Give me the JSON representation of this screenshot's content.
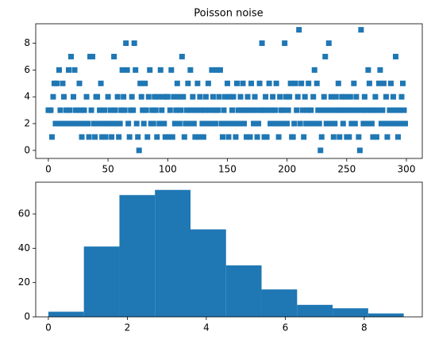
{
  "chart_data": [
    {
      "type": "scatter",
      "title": "Poisson noise",
      "color": "#1f77b4",
      "marker": "square",
      "xlim": [
        -10.6,
        313.3
      ],
      "ylim": [
        -0.6,
        9.45
      ],
      "xticks": [
        0,
        50,
        100,
        150,
        200,
        250,
        300
      ],
      "yticks": [
        0,
        2,
        4,
        6,
        8
      ],
      "x": [
        0,
        1,
        2,
        3,
        4,
        5,
        6,
        7,
        8,
        9,
        10,
        11,
        12,
        13,
        14,
        15,
        16,
        17,
        18,
        19,
        20,
        21,
        22,
        23,
        24,
        25,
        26,
        27,
        28,
        29,
        30,
        31,
        32,
        33,
        34,
        35,
        36,
        37,
        38,
        39,
        40,
        41,
        42,
        43,
        44,
        45,
        46,
        47,
        48,
        49,
        50,
        51,
        52,
        53,
        54,
        55,
        56,
        57,
        58,
        59,
        60,
        61,
        62,
        63,
        64,
        65,
        66,
        67,
        68,
        69,
        70,
        71,
        72,
        73,
        74,
        75,
        76,
        77,
        78,
        79,
        80,
        81,
        82,
        83,
        84,
        85,
        86,
        87,
        88,
        89,
        90,
        91,
        92,
        93,
        94,
        95,
        96,
        97,
        98,
        99,
        100,
        101,
        102,
        103,
        104,
        105,
        106,
        107,
        108,
        109,
        110,
        111,
        112,
        113,
        114,
        115,
        116,
        117,
        118,
        119,
        120,
        121,
        122,
        123,
        124,
        125,
        126,
        127,
        128,
        129,
        130,
        131,
        132,
        133,
        134,
        135,
        136,
        137,
        138,
        139,
        140,
        141,
        142,
        143,
        144,
        145,
        146,
        147,
        148,
        149,
        150,
        151,
        152,
        153,
        154,
        155,
        156,
        157,
        158,
        159,
        160,
        161,
        162,
        163,
        164,
        165,
        166,
        167,
        168,
        169,
        170,
        171,
        172,
        173,
        174,
        175,
        176,
        177,
        178,
        179,
        180,
        181,
        182,
        183,
        184,
        185,
        186,
        187,
        188,
        189,
        190,
        191,
        192,
        193,
        194,
        195,
        196,
        197,
        198,
        199,
        200,
        201,
        202,
        203,
        204,
        205,
        206,
        207,
        208,
        209,
        210,
        211,
        212,
        213,
        214,
        215,
        216,
        217,
        218,
        219,
        220,
        221,
        222,
        223,
        224,
        225,
        226,
        227,
        228,
        229,
        230,
        231,
        232,
        233,
        234,
        235,
        236,
        237,
        238,
        239,
        240,
        241,
        242,
        243,
        244,
        245,
        246,
        247,
        248,
        249,
        250,
        251,
        252,
        253,
        254,
        255,
        256,
        257,
        258,
        259,
        260,
        261,
        262,
        263,
        264,
        265,
        266,
        267,
        268,
        269,
        270,
        271,
        272,
        273,
        274,
        275,
        276,
        277,
        278,
        279,
        280,
        281,
        282,
        283,
        284,
        285,
        286,
        287,
        288,
        289,
        290,
        291,
        292,
        293,
        294,
        295,
        296,
        297,
        298,
        299
      ],
      "values": [
        3,
        3,
        3,
        1,
        4,
        5,
        2,
        5,
        2,
        6,
        3,
        2,
        5,
        4,
        2,
        3,
        2,
        6,
        3,
        7,
        2,
        4,
        6,
        3,
        2,
        2,
        5,
        3,
        1,
        2,
        3,
        2,
        4,
        2,
        1,
        7,
        3,
        7,
        2,
        1,
        4,
        4,
        2,
        3,
        5,
        1,
        2,
        3,
        1,
        2,
        4,
        2,
        3,
        1,
        2,
        7,
        3,
        2,
        4,
        1,
        2,
        3,
        6,
        4,
        3,
        8,
        6,
        2,
        1,
        3,
        4,
        3,
        8,
        6,
        2,
        1,
        0,
        5,
        4,
        3,
        2,
        5,
        3,
        1,
        4,
        6,
        2,
        3,
        2,
        4,
        3,
        1,
        4,
        2,
        6,
        3,
        4,
        2,
        1,
        4,
        4,
        1,
        3,
        6,
        1,
        4,
        2,
        3,
        5,
        4,
        2,
        3,
        7,
        4,
        1,
        2,
        3,
        5,
        2,
        6,
        3,
        4,
        2,
        1,
        3,
        5,
        1,
        4,
        3,
        2,
        1,
        3,
        4,
        2,
        5,
        3,
        2,
        6,
        4,
        3,
        2,
        6,
        3,
        4,
        6,
        2,
        1,
        3,
        4,
        2,
        5,
        1,
        4,
        2,
        3,
        4,
        2,
        1,
        5,
        3,
        2,
        4,
        3,
        5,
        2,
        3,
        1,
        4,
        3,
        1,
        5,
        3,
        2,
        4,
        3,
        1,
        2,
        5,
        3,
        8,
        3,
        1,
        4,
        1,
        3,
        5,
        2,
        3,
        4,
        2,
        3,
        5,
        2,
        1,
        4,
        3,
        2,
        3,
        8,
        4,
        2,
        3,
        4,
        5,
        1,
        1,
        2,
        5,
        3,
        4,
        9,
        2,
        5,
        3,
        1,
        4,
        2,
        3,
        5,
        2,
        3,
        2,
        4,
        6,
        2,
        5,
        3,
        2,
        0,
        1,
        3,
        4,
        7,
        2,
        3,
        8,
        2,
        4,
        3,
        1,
        2,
        4,
        3,
        5,
        1,
        3,
        4,
        2,
        3,
        4,
        1,
        3,
        1,
        4,
        2,
        3,
        5,
        2,
        4,
        3,
        1,
        0,
        9,
        3,
        2,
        4,
        3,
        2,
        6,
        5,
        3,
        2,
        1,
        3,
        4,
        1,
        3,
        5,
        6,
        2,
        3,
        5,
        2,
        4,
        1,
        2,
        3,
        5,
        2,
        4,
        3,
        7,
        2,
        1,
        3,
        2,
        4,
        5,
        3,
        2
      ]
    },
    {
      "type": "histogram",
      "color": "#1f77b4",
      "bins": [
        0,
        0.9,
        1.8,
        2.7,
        3.6,
        4.5,
        5.4,
        6.3,
        7.2,
        8.1,
        9
      ],
      "counts": [
        3,
        41,
        71,
        74,
        51,
        30,
        16,
        7,
        5,
        2
      ],
      "xlim": [
        -0.32,
        9.47
      ],
      "ylim": [
        0,
        78.5
      ],
      "xticks": [
        0,
        2,
        4,
        6,
        8
      ],
      "yticks": [
        0,
        20,
        40,
        60
      ]
    }
  ]
}
